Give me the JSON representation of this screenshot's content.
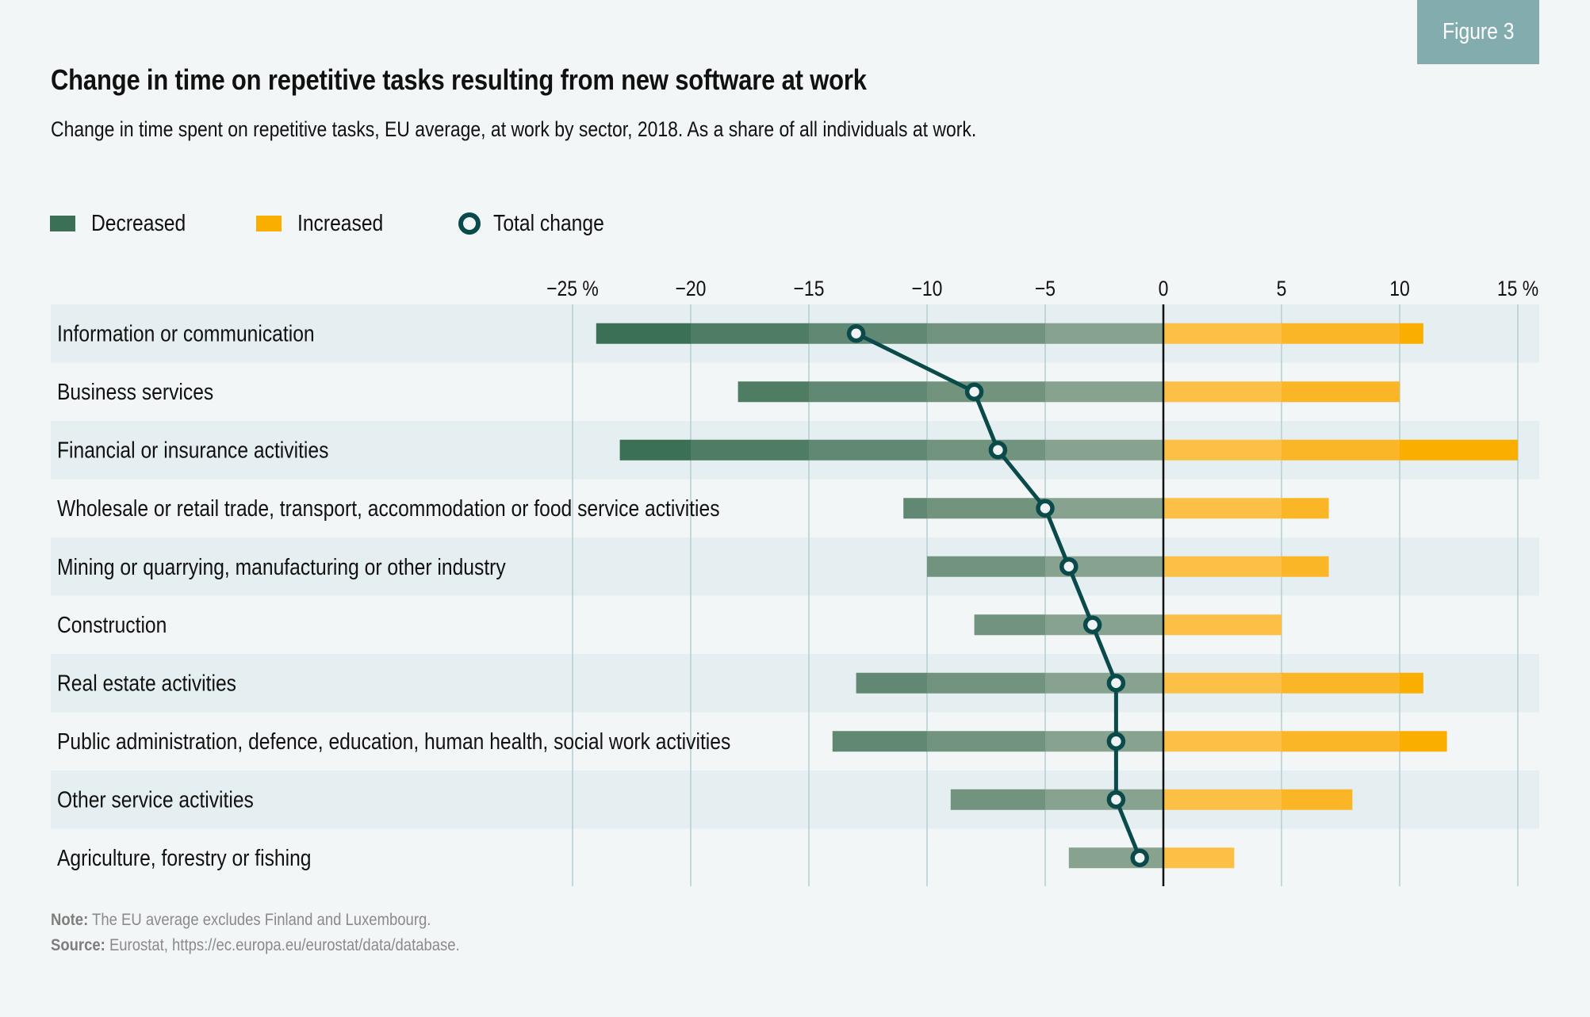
{
  "badge": "Figure 3",
  "title": "Change in time on repetitive tasks resulting from new software at work",
  "subtitle": "Change in time spent on repetitive tasks, EU average, at work by sector, 2018. As a share of all individuals at work.",
  "legend": [
    {
      "key": "decreased",
      "label": "Decreased",
      "color": "#3b7055"
    },
    {
      "key": "increased",
      "label": "Increased",
      "color": "#f9ae00"
    },
    {
      "key": "total",
      "label": "Total change",
      "color": "#0b4a4b"
    }
  ],
  "notes": {
    "note_label": "Note:",
    "note_text": " The EU average excludes Finland and Luxembourg.",
    "source_label": "Source:",
    "source_text": " Eurostat, https://ec.europa.eu/eurostat/data/database."
  },
  "colors": {
    "decreased_bands": [
      "#87a28f",
      "#72947f",
      "#618873",
      "#4f7d64",
      "#3b7055"
    ],
    "increased_bands": [
      "#fdc046",
      "#fbb627",
      "#f9ae00"
    ],
    "total_line": "#0b4a4b",
    "row_shade": "#e5eef0",
    "grid": "#b5cdd2"
  },
  "chart_data": {
    "type": "bar",
    "orientation": "horizontal-diverging",
    "title": "Change in time on repetitive tasks resulting from new software at work",
    "subtitle": "Change in time spent on repetitive tasks, EU average, at work by sector, 2018. As a share of all individuals at work.",
    "xlabel": "%",
    "xlim": [
      -25,
      15
    ],
    "xticks": [
      -25,
      -20,
      -15,
      -10,
      -5,
      0,
      5,
      10,
      15
    ],
    "xtick_labels": [
      "−25 %",
      "−20",
      "−15",
      "−10",
      "−5",
      "0",
      "5",
      "10",
      "15 %"
    ],
    "grid": true,
    "legend_position": "top-left",
    "categories": [
      "Information or communication",
      "Business services",
      "Financial or insurance activities",
      "Wholesale or retail trade, transport, accommodation or food service activities",
      "Mining or quarrying, manufacturing or other industry",
      "Construction",
      "Real estate activities",
      "Public administration, defence, education, human health, social work activities",
      "Other service activities",
      "Agriculture, forestry or fishing"
    ],
    "series": [
      {
        "name": "Decreased",
        "type": "bar",
        "values": [
          -24,
          -18,
          -23,
          -11,
          -10,
          -8,
          -13,
          -14,
          -9,
          -4
        ]
      },
      {
        "name": "Increased",
        "type": "bar",
        "values": [
          11,
          10,
          15,
          7,
          7,
          5,
          11,
          12,
          8,
          3
        ]
      },
      {
        "name": "Total change",
        "type": "line-markers",
        "values": [
          -13,
          -8,
          -7,
          -5,
          -4,
          -3,
          -2,
          -2,
          -2,
          -1
        ]
      }
    ]
  }
}
